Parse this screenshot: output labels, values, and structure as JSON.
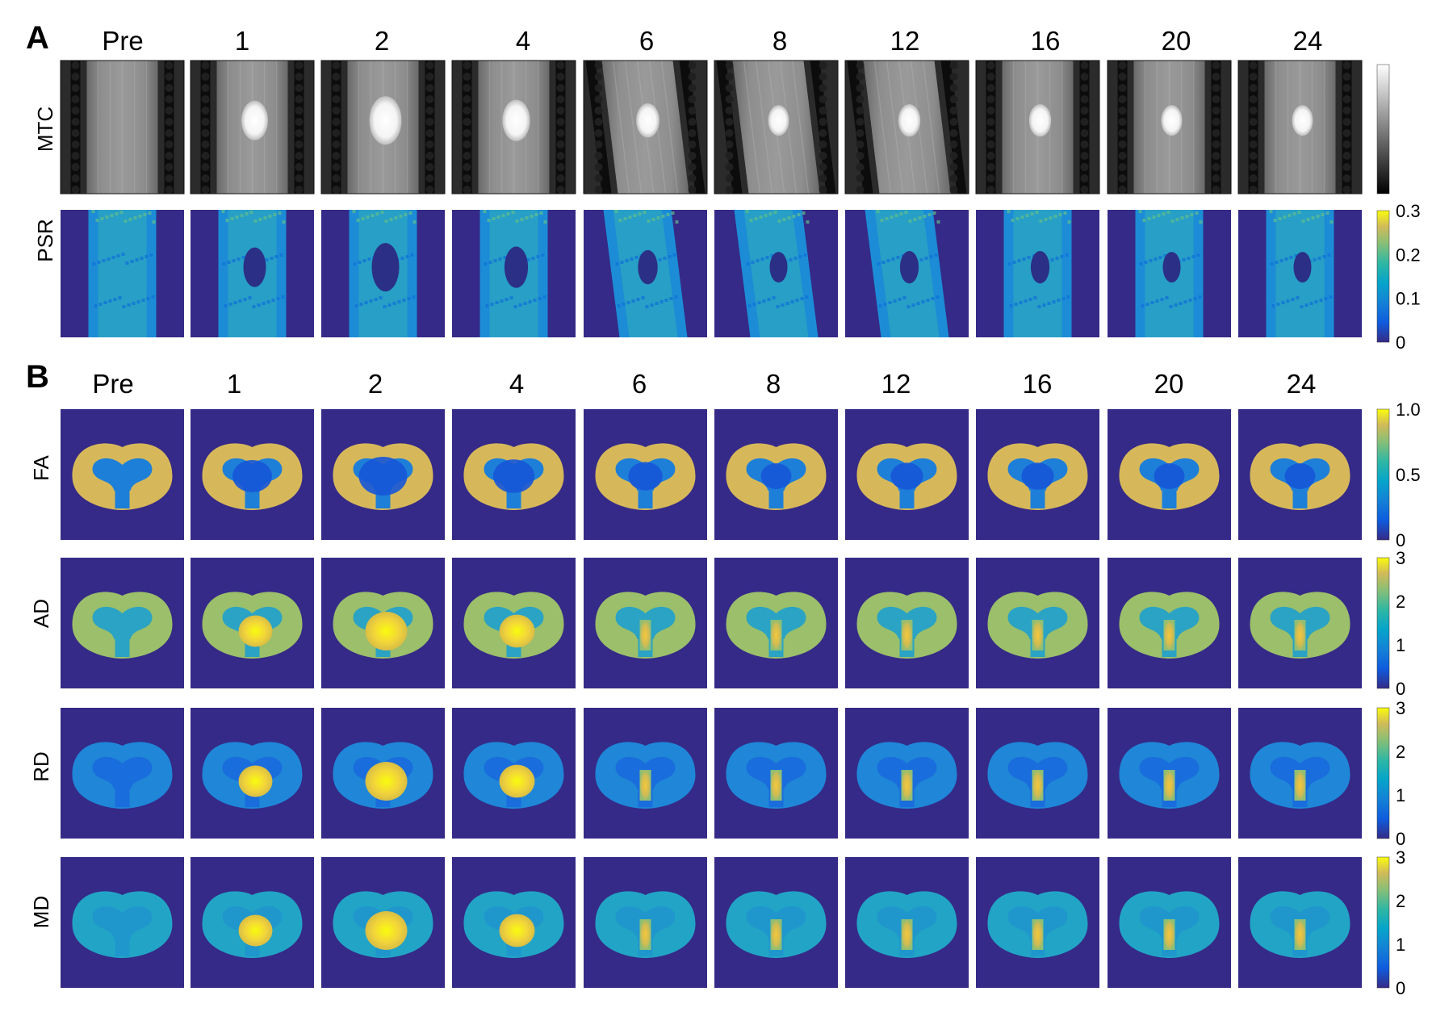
{
  "panels": {
    "a": {
      "label": "A",
      "rows": [
        "MTC",
        "PSR"
      ]
    },
    "b": {
      "label": "B",
      "rows": [
        "FA",
        "AD",
        "RD",
        "MD"
      ]
    }
  },
  "timepoints": [
    "Pre",
    "1",
    "2",
    "4",
    "6",
    "8",
    "12",
    "16",
    "20",
    "24"
  ],
  "colorbars": {
    "mtc": {
      "colormap": "gray",
      "ticks": []
    },
    "psr": {
      "colormap": "parula",
      "ticks": [
        "0.3",
        "0.2",
        "0.1",
        "0"
      ]
    },
    "fa": {
      "colormap": "parula",
      "ticks": [
        "1.0",
        "0.5",
        "0"
      ]
    },
    "ad": {
      "colormap": "parula",
      "ticks": [
        "3",
        "2",
        "1",
        "0"
      ]
    },
    "rd": {
      "colormap": "parula",
      "ticks": [
        "3",
        "2",
        "1",
        "0"
      ]
    },
    "md": {
      "colormap": "parula",
      "ticks": [
        "3",
        "2",
        "1",
        "0"
      ]
    }
  },
  "lesion_size": [
    0,
    0.75,
    1.0,
    0.8,
    0.6,
    0.5,
    0.55,
    0.55,
    0.5,
    0.5
  ],
  "colors": {
    "background": "#352a87",
    "cord_green": "#2eaea0",
    "cord_blue": "#1c8cd6",
    "cord_yellow": "#d6b85a",
    "lesion_dark": "#2b2f86"
  }
}
